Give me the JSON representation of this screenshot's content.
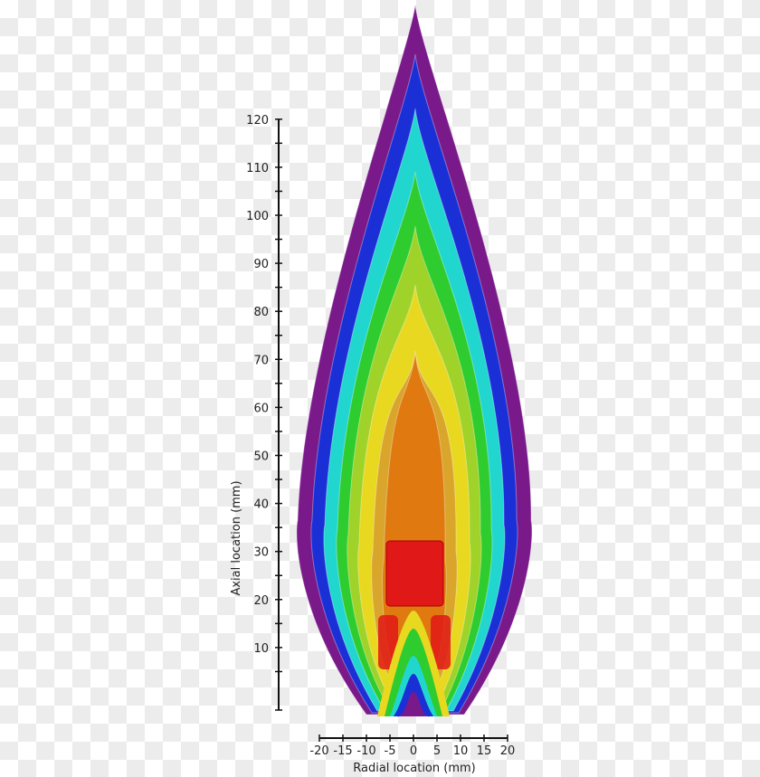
{
  "chart_data": {
    "type": "contour",
    "xlabel": "Radial location (mm)",
    "ylabel": "Axial location (mm)",
    "xlim": [
      -20,
      20
    ],
    "ylim": [
      0,
      120
    ],
    "xticks": [
      "-20",
      "-15",
      "-10",
      "-5",
      "0",
      "5",
      "10",
      "15",
      "20"
    ],
    "yticks": [
      "10",
      "20",
      "30",
      "40",
      "50",
      "60",
      "70",
      "80",
      "90",
      "100",
      "110",
      "120"
    ],
    "contour_colors": [
      "#7a1a8a",
      "#1a2fd6",
      "#22d6d0",
      "#2ecc2e",
      "#9fd32a",
      "#e8d820",
      "#d9a52a",
      "#e07a10",
      "#e01818"
    ],
    "grid": false,
    "legend": "none"
  }
}
